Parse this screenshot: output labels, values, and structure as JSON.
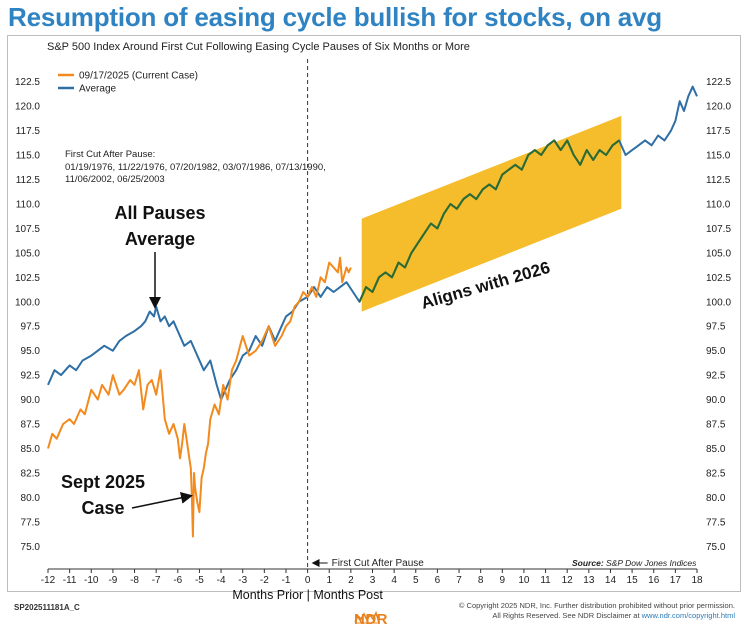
{
  "headline": "Resumption of easing cycle bullish for stocks, on avg",
  "chart_data": {
    "type": "line",
    "title": "S&P 500 Index Around First Cut Following Easing Cycle Pauses of Six Months or More",
    "xlabel": "Months Prior | Months Post",
    "ylabel": "",
    "xlim": [
      -12,
      18
    ],
    "ylim": [
      75,
      122.5
    ],
    "x_ticks": [
      -12,
      -11,
      -10,
      -9,
      -8,
      -7,
      -6,
      -5,
      -4,
      -3,
      -2,
      -1,
      0,
      1,
      2,
      3,
      4,
      5,
      6,
      7,
      8,
      9,
      10,
      11,
      12,
      13,
      14,
      15,
      16,
      17,
      18
    ],
    "x_tick_labels": [
      "-12",
      "-11",
      "-10",
      "-9",
      "-8",
      "-7",
      "-6",
      "-5",
      "-4",
      "-3",
      "-2",
      "-1",
      "0",
      "1",
      "2",
      "3",
      "4",
      "5",
      "6",
      "7",
      "8",
      "9",
      "10",
      "11",
      "12",
      "13",
      "14",
      "15",
      "16",
      "17",
      "18"
    ],
    "y_ticks": [
      75,
      77.5,
      80,
      82.5,
      85,
      87.5,
      90,
      92.5,
      95,
      97.5,
      100,
      102.5,
      105,
      107.5,
      110,
      112.5,
      115,
      117.5,
      120,
      122.5
    ],
    "y_tick_labels": [
      "75.0",
      "77.5",
      "80.0",
      "82.5",
      "85.0",
      "87.5",
      "90.0",
      "92.5",
      "95.0",
      "97.5",
      "100.0",
      "102.5",
      "105.0",
      "107.5",
      "110.0",
      "112.5",
      "115.0",
      "117.5",
      "120.0",
      "122.5"
    ],
    "series": [
      {
        "name": "09/17/2025 (Current Case)",
        "color": "#f28a1e",
        "x": [
          -12,
          -11.8,
          -11.6,
          -11.3,
          -11,
          -10.8,
          -10.5,
          -10.3,
          -10,
          -9.7,
          -9.5,
          -9.2,
          -9,
          -8.7,
          -8.5,
          -8.2,
          -8,
          -7.8,
          -7.6,
          -7.4,
          -7.2,
          -7,
          -6.8,
          -6.6,
          -6.4,
          -6.2,
          -6,
          -5.9,
          -5.8,
          -5.7,
          -5.6,
          -5.5,
          -5.4,
          -5.35,
          -5.3,
          -5.25,
          -5.2,
          -5.1,
          -5,
          -4.9,
          -4.8,
          -4.7,
          -4.6,
          -4.5,
          -4.3,
          -4.1,
          -3.9,
          -3.7,
          -3.5,
          -3.3,
          -3,
          -2.7,
          -2.4,
          -2.1,
          -1.8,
          -1.5,
          -1.2,
          -1,
          -0.8,
          -0.6,
          -0.4,
          -0.2,
          0,
          0.2,
          0.4,
          0.6,
          0.8,
          1,
          1.2,
          1.4,
          1.5,
          1.6,
          1.8,
          1.9,
          2
        ],
        "values": [
          85,
          86.5,
          86,
          87.5,
          88,
          87.5,
          89,
          88.5,
          91,
          90,
          91.5,
          90.5,
          92.5,
          90.5,
          91,
          92,
          91.5,
          93,
          89,
          91.5,
          92,
          90.5,
          93,
          88,
          86.5,
          87.5,
          86,
          84,
          85.5,
          87.5,
          86,
          84.5,
          83,
          80,
          76,
          82.5,
          81,
          79.5,
          78.5,
          82,
          83,
          84.5,
          85.5,
          88,
          89.5,
          88.5,
          91.5,
          90,
          93,
          94,
          96.5,
          94.5,
          95,
          96,
          97.5,
          95.5,
          96.5,
          97.5,
          98,
          99.5,
          100,
          101,
          100.5,
          101.5,
          100.5,
          102.5,
          102,
          104,
          103.5,
          103,
          104.5,
          102,
          103.5,
          103,
          103.5
        ]
      },
      {
        "name": "Average",
        "color": "#2e6fa5",
        "x": [
          -12,
          -11.7,
          -11.4,
          -11,
          -10.7,
          -10.4,
          -10,
          -9.7,
          -9.4,
          -9,
          -8.7,
          -8.4,
          -8,
          -7.7,
          -7.5,
          -7.3,
          -7.1,
          -7,
          -6.8,
          -6.6,
          -6.4,
          -6.2,
          -6,
          -5.7,
          -5.4,
          -5.1,
          -4.8,
          -4.5,
          -4.2,
          -4,
          -3.8,
          -3.6,
          -3.3,
          -3,
          -2.7,
          -2.4,
          -2.1,
          -1.8,
          -1.5,
          -1.2,
          -1,
          -0.7,
          -0.4,
          0,
          0.3,
          0.6,
          0.9,
          1.2,
          1.5,
          1.8,
          2.1,
          2.4,
          2.7,
          3,
          3.3,
          3.6,
          3.9,
          4.2,
          4.5,
          4.8,
          5.1,
          5.4,
          5.7,
          6,
          6.3,
          6.6,
          6.9,
          7.2,
          7.5,
          7.8,
          8.1,
          8.4,
          8.7,
          9,
          9.3,
          9.6,
          9.9,
          10.2,
          10.5,
          10.8,
          11.1,
          11.4,
          11.7,
          12,
          12.3,
          12.6,
          12.9,
          13.2,
          13.5,
          13.8,
          14.1,
          14.4,
          14.7,
          15,
          15.3,
          15.6,
          15.9,
          16.2,
          16.5,
          16.8,
          17,
          17.2,
          17.4,
          17.6,
          17.8,
          18
        ],
        "values": [
          91.5,
          93,
          92.5,
          93.5,
          93,
          94,
          94.5,
          95,
          95.5,
          95,
          96,
          96.5,
          97,
          97.5,
          98,
          99,
          98.5,
          99.5,
          98,
          98.5,
          97.5,
          98,
          97,
          95.5,
          96,
          94.5,
          93,
          94,
          91.5,
          90,
          91,
          92,
          93,
          94.5,
          95,
          96.5,
          95.5,
          97.5,
          96,
          97.5,
          98.5,
          99,
          100,
          100.5,
          101.5,
          100.5,
          101.5,
          101,
          101.5,
          102,
          101,
          100,
          101.5,
          101,
          102.5,
          103,
          102.5,
          104,
          103.5,
          105,
          106,
          107,
          108,
          107.5,
          109,
          110,
          109.5,
          110.5,
          111,
          110.5,
          111.5,
          112,
          111.5,
          113,
          113.5,
          114,
          113.5,
          115,
          115.5,
          115,
          116,
          116.5,
          115.5,
          116.5,
          115,
          114,
          115.5,
          114.5,
          115.5,
          115,
          116,
          116.5,
          115,
          115.5,
          116,
          116.5,
          116,
          117,
          116.5,
          117.5,
          118.5,
          120.5,
          119.5,
          121,
          122,
          121
        ]
      }
    ],
    "legend": [
      "09/17/2025 (Current Case)",
      "Average"
    ],
    "legend_placement": "top-left",
    "pause_dates_title": "First Cut After Pause:",
    "pause_dates_lines": [
      "01/19/1976, 11/22/1976, 07/20/1982, 03/07/1986, 07/13/1990,",
      "11/06/2002, 06/25/2003"
    ],
    "vline_label": "First Cut After Pause",
    "source": "Source:",
    "source_name": "S&P Dow Jones Indices",
    "annotations": {
      "avg_line1": "All Pauses",
      "avg_line2": "Average",
      "sept_line1": "Sept 2025",
      "sept_line2": "Case",
      "band_label": "Aligns with 2026"
    },
    "band": {
      "color": "#f5bd2c",
      "x_range": [
        2.5,
        14.5
      ],
      "y_bottom": [
        99,
        109.5
      ],
      "y_top": [
        108.5,
        119
      ]
    }
  },
  "footer": {
    "code": "SP202511181A_C",
    "copyright": "© Copyright 2025 NDR, Inc. Further distribution prohibited without prior permission.",
    "rights_prefix": "All Rights Reserved. See NDR Disclaimer at ",
    "rights_link": "www.ndr.com/copyright.html",
    "logo_text": "NDR"
  },
  "colors": {
    "headline": "#2f83c2",
    "current": "#f28a1e",
    "average": "#2e6fa5",
    "overlay": "#2e6b2e",
    "band": "#f5bd2c"
  }
}
